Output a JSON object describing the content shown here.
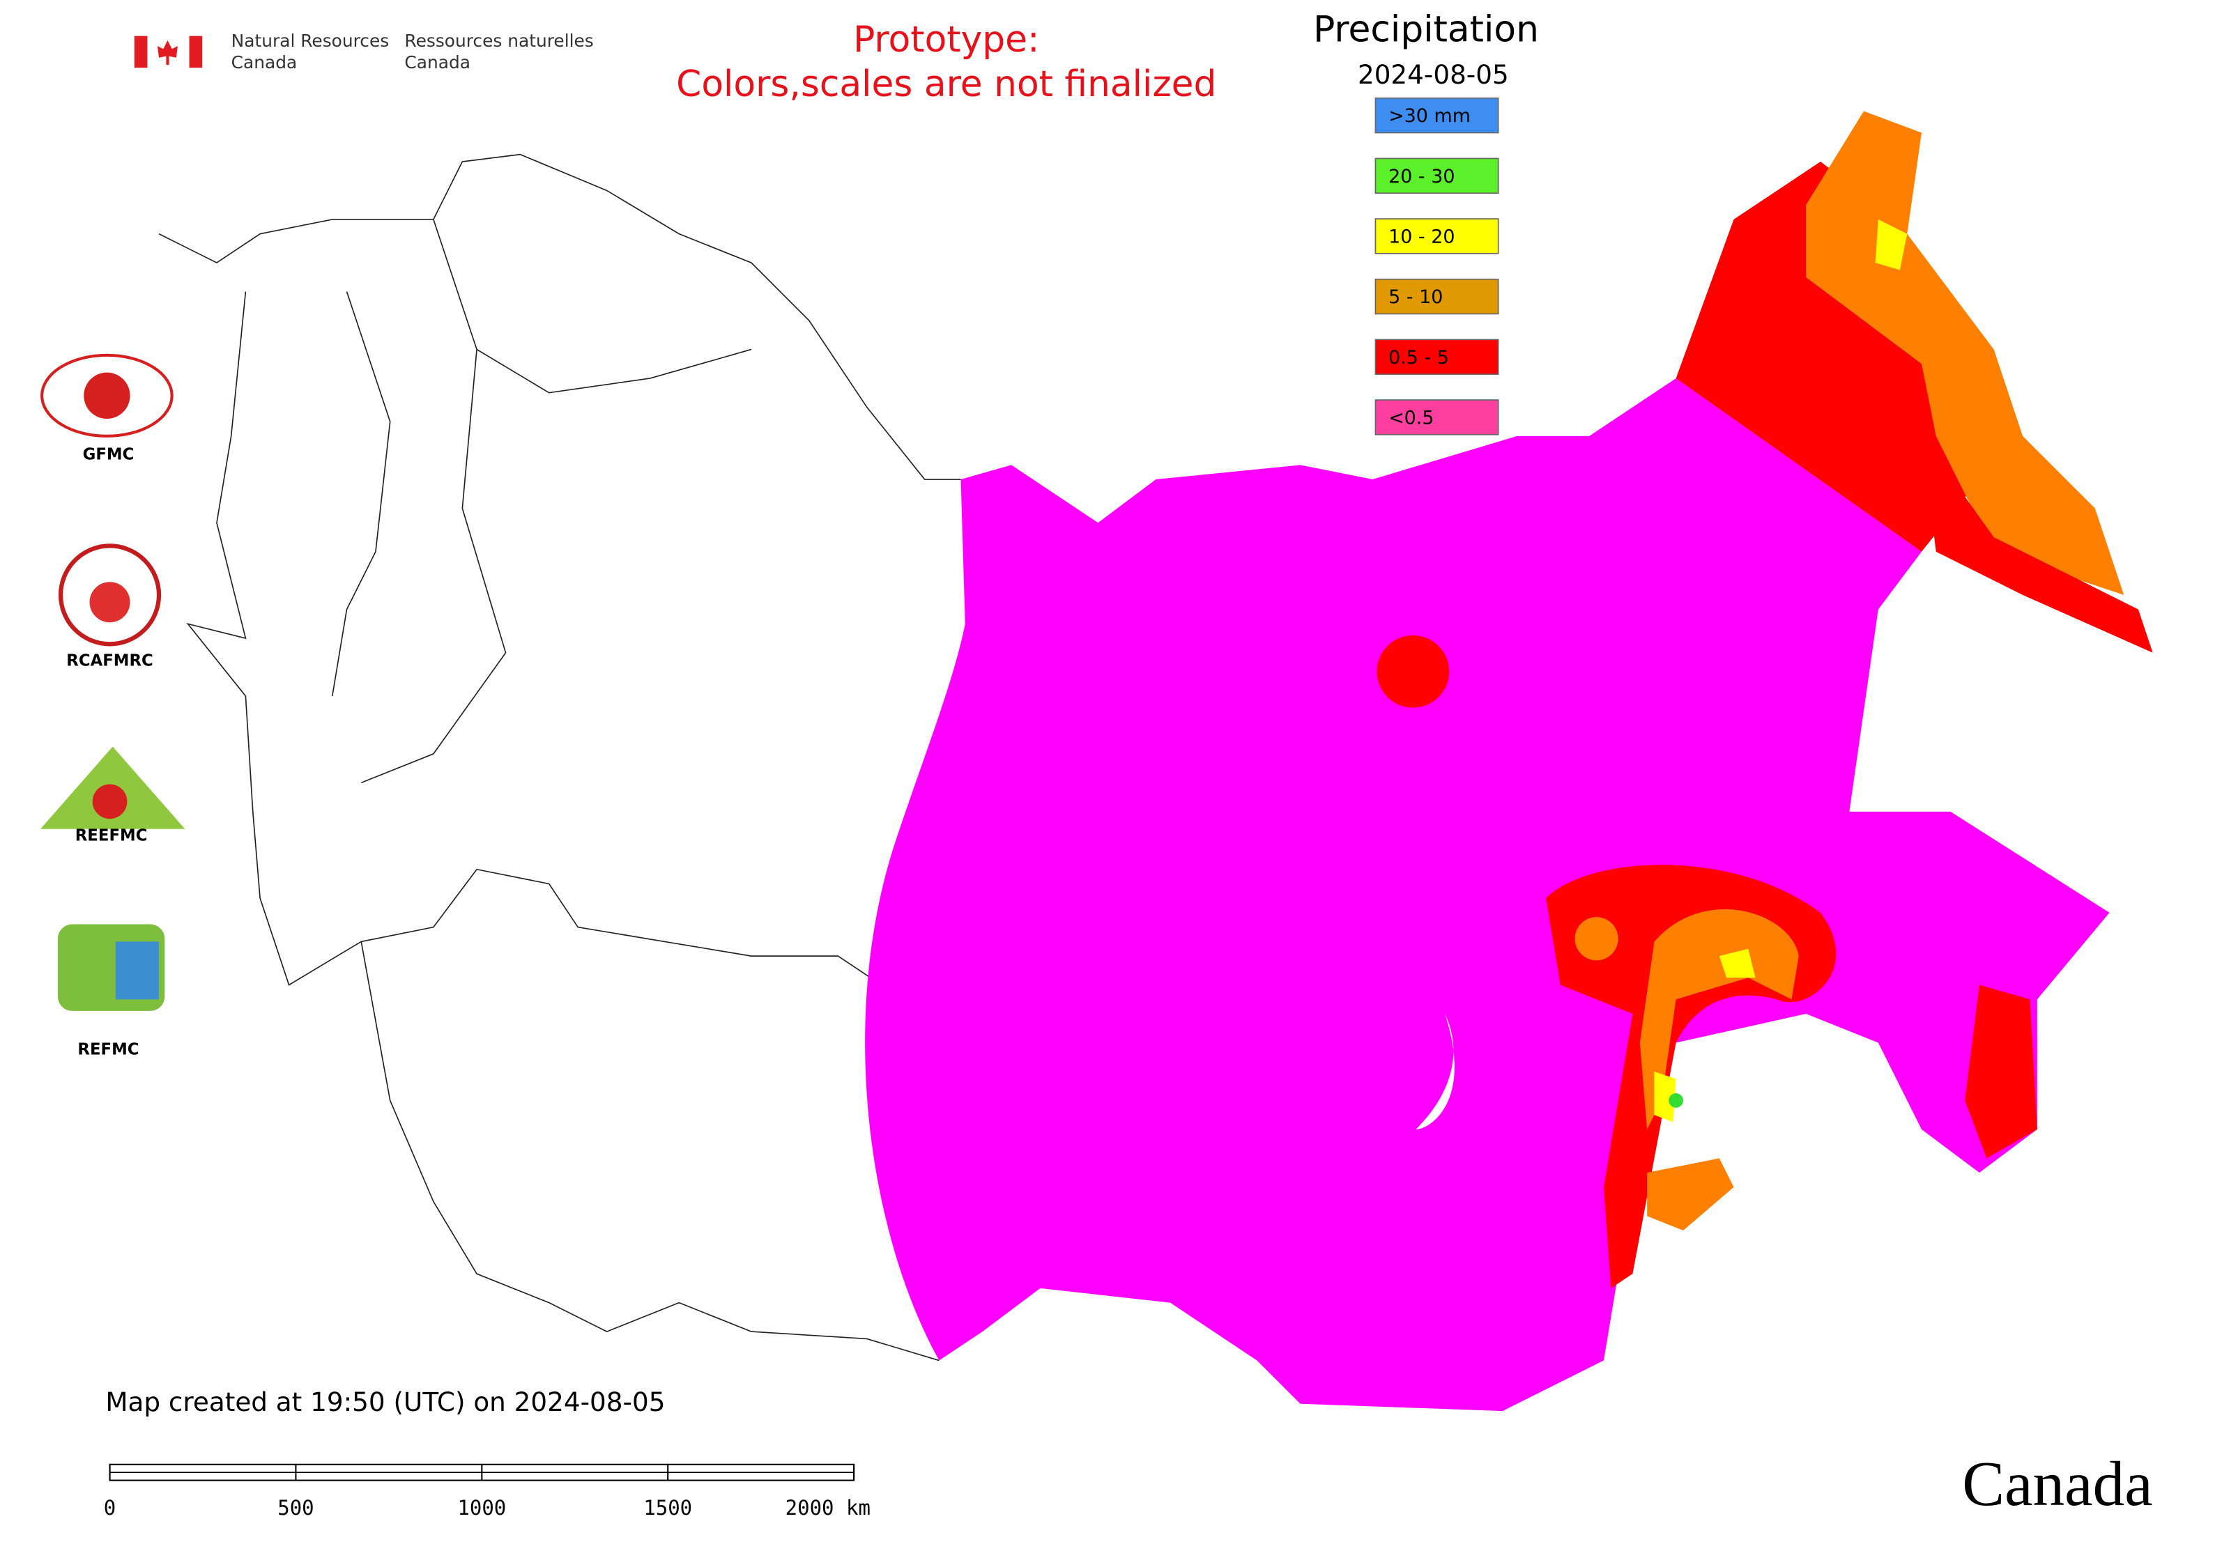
{
  "header": {
    "department_en": [
      "Natural Resources",
      "Canada"
    ],
    "department_fr": [
      "Ressources naturelles",
      "Canada"
    ],
    "notice": [
      "Prototype:",
      "Colors,scales are not finalized"
    ]
  },
  "legend": {
    "title": "Precipitation",
    "date": "2024-08-05",
    "items": [
      {
        "label": ">30 mm",
        "color": "#3d8ef0"
      },
      {
        "label": "20 - 30",
        "color": "#5cf02a"
      },
      {
        "label": "10 - 20",
        "color": "#ffff00"
      },
      {
        "label": "5 - 10",
        "color": "#e09a00"
      },
      {
        "label": "0.5 - 5",
        "color": "#ff0000"
      },
      {
        "label": "<0.5",
        "color": "#ff3fa0"
      }
    ]
  },
  "logos": [
    "GFMC",
    "RCAFMRC",
    "REEFMC",
    "REFMC"
  ],
  "footer": {
    "created": "Map created at 19:50 (UTC) on 2024-08-05",
    "wordmark": "Canada"
  },
  "scale_bar": {
    "ticks": [
      0,
      500,
      1000,
      1500,
      {
        "value": 2000,
        "label": "2000 km"
      }
    ]
  }
}
